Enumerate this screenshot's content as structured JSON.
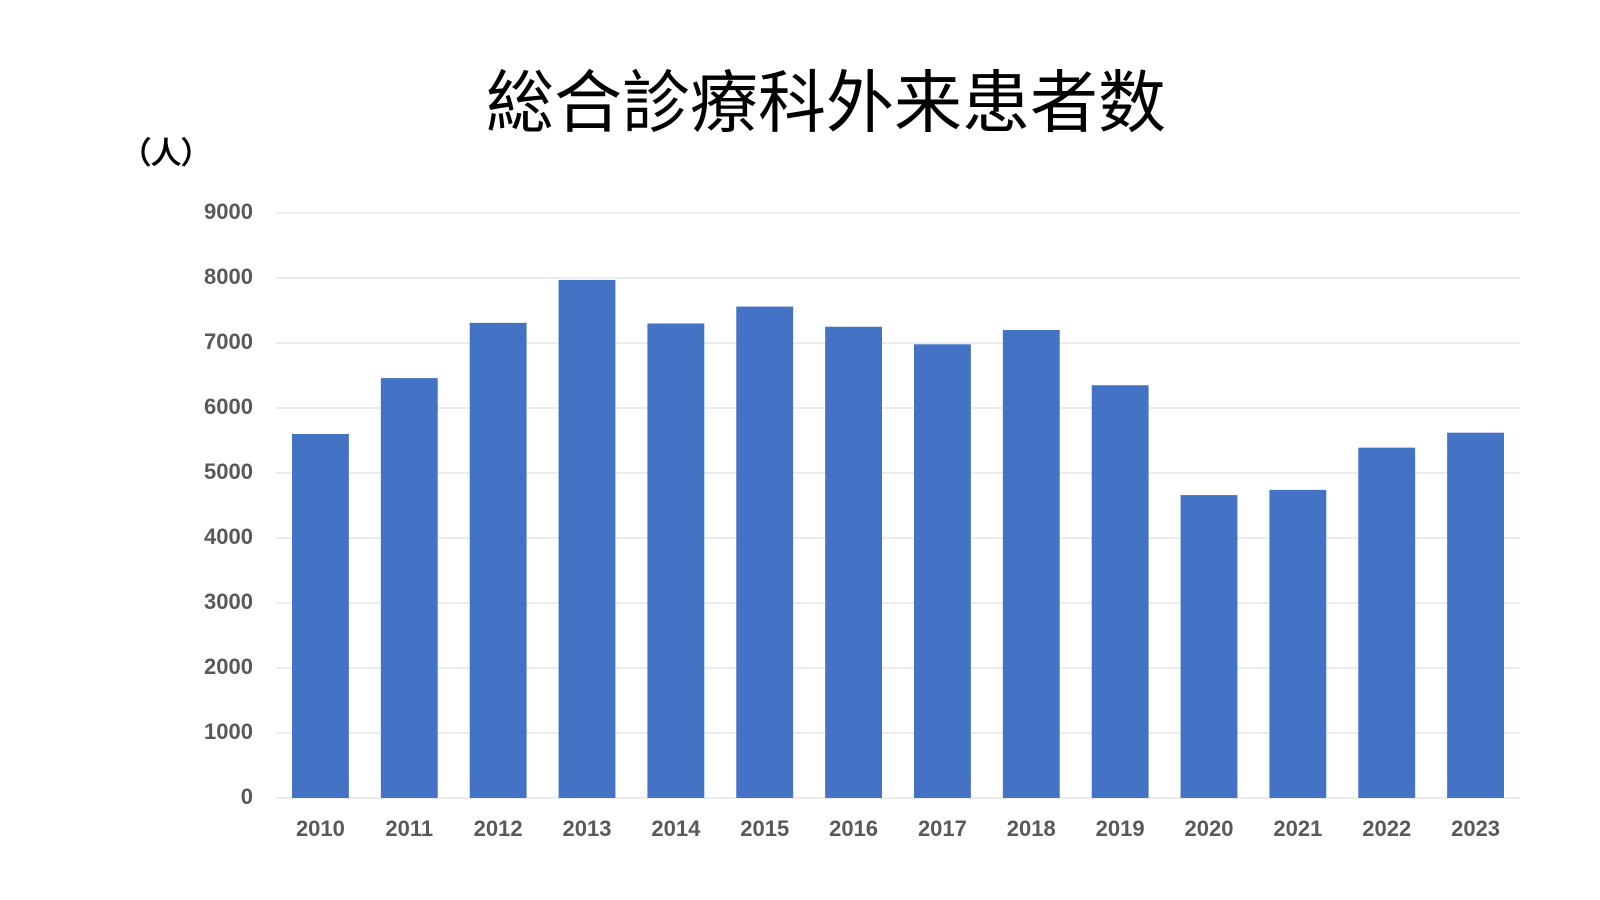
{
  "chart_data": {
    "type": "bar",
    "title": "総合診療科外来患者数",
    "y_label": "（人）",
    "categories": [
      "2010",
      "2011",
      "2012",
      "2013",
      "2014",
      "2015",
      "2016",
      "2017",
      "2018",
      "2019",
      "2020",
      "2021",
      "2022",
      "2023"
    ],
    "values": [
      5600,
      6460,
      7310,
      7970,
      7300,
      7560,
      7250,
      6980,
      7200,
      6350,
      4660,
      4740,
      5390,
      5620
    ],
    "color": "#4472c4",
    "ylim": [
      0,
      9000
    ],
    "yticks": [
      0,
      1000,
      2000,
      3000,
      4000,
      5000,
      6000,
      7000,
      8000,
      9000
    ],
    "grid": true
  }
}
